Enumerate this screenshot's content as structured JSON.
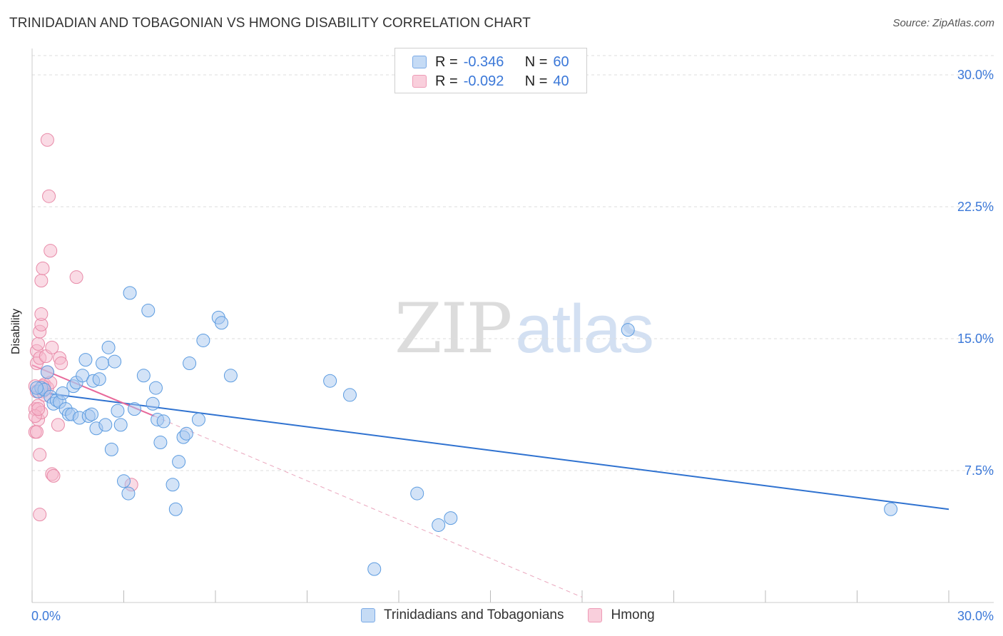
{
  "title": "TRINIDADIAN AND TOBAGONIAN VS HMONG DISABILITY CORRELATION CHART",
  "source": "Source: ZipAtlas.com",
  "watermark": {
    "zip": "ZIP",
    "atlas": "atlas"
  },
  "legend": {
    "rows": [
      {
        "r_label": "R =",
        "r_value": "-0.346",
        "n_label": "N =",
        "n_value": "60",
        "color": "#a8c8f0"
      },
      {
        "r_label": "R =",
        "r_value": "-0.092",
        "n_label": "N =",
        "n_value": "40",
        "color": "#f6b8cb"
      }
    ]
  },
  "bottom_legend": {
    "items": [
      {
        "label": "Trinidadians and Tobagonians",
        "color": "#a8c8f0"
      },
      {
        "label": "Hmong",
        "color": "#f6b8cb"
      }
    ]
  },
  "chart_data": {
    "type": "scatter",
    "title": "TRINIDADIAN AND TOBAGONIAN VS HMONG DISABILITY CORRELATION CHART",
    "xlabel": "",
    "ylabel": "Disability",
    "xlim": [
      0,
      30
    ],
    "ylim": [
      0,
      31.5
    ],
    "x_tick_labels": [
      "0.0%",
      "30.0%"
    ],
    "y_ticks": [
      7.5,
      15.0,
      22.5,
      30.0
    ],
    "y_tick_labels": [
      "7.5%",
      "15.0%",
      "22.5%",
      "30.0%"
    ],
    "grid": true,
    "series": [
      {
        "name": "Trinidadians and Tobagonians",
        "color": "#a8c8f0",
        "stroke": "#5b9be0",
        "points": [
          [
            0.2,
            12.0
          ],
          [
            0.3,
            12.2
          ],
          [
            0.4,
            12.1
          ],
          [
            0.5,
            13.1
          ],
          [
            0.6,
            11.7
          ],
          [
            0.7,
            11.3
          ],
          [
            0.8,
            11.5
          ],
          [
            0.9,
            11.4
          ],
          [
            1.0,
            11.9
          ],
          [
            1.1,
            11.0
          ],
          [
            1.2,
            10.7
          ],
          [
            1.3,
            10.7
          ],
          [
            1.35,
            12.3
          ],
          [
            1.45,
            12.5
          ],
          [
            1.55,
            10.5
          ],
          [
            1.65,
            12.9
          ],
          [
            1.75,
            13.8
          ],
          [
            1.85,
            10.6
          ],
          [
            1.95,
            10.7
          ],
          [
            2.0,
            12.6
          ],
          [
            2.1,
            9.9
          ],
          [
            2.2,
            12.7
          ],
          [
            2.3,
            13.6
          ],
          [
            2.4,
            10.1
          ],
          [
            2.5,
            14.5
          ],
          [
            2.6,
            8.7
          ],
          [
            2.7,
            13.7
          ],
          [
            2.8,
            10.9
          ],
          [
            2.9,
            10.1
          ],
          [
            3.0,
            6.9
          ],
          [
            3.15,
            6.2
          ],
          [
            3.2,
            17.6
          ],
          [
            3.35,
            11.0
          ],
          [
            3.65,
            12.9
          ],
          [
            3.8,
            16.6
          ],
          [
            3.95,
            11.3
          ],
          [
            4.05,
            12.2
          ],
          [
            4.1,
            10.4
          ],
          [
            4.2,
            9.1
          ],
          [
            4.3,
            10.3
          ],
          [
            4.6,
            6.7
          ],
          [
            4.7,
            5.3
          ],
          [
            4.8,
            8.0
          ],
          [
            4.95,
            9.4
          ],
          [
            5.05,
            9.6
          ],
          [
            5.15,
            13.6
          ],
          [
            5.45,
            10.4
          ],
          [
            5.6,
            14.9
          ],
          [
            6.1,
            16.2
          ],
          [
            6.2,
            15.9
          ],
          [
            6.5,
            12.9
          ],
          [
            9.75,
            12.6
          ],
          [
            10.4,
            11.8
          ],
          [
            11.2,
            1.9
          ],
          [
            12.6,
            6.2
          ],
          [
            13.3,
            4.4
          ],
          [
            13.7,
            4.8
          ],
          [
            19.5,
            15.5
          ],
          [
            28.1,
            5.3
          ],
          [
            0.15,
            12.2
          ]
        ]
      },
      {
        "name": "Hmong",
        "color": "#f6b8cb",
        "stroke": "#e88aa8",
        "points": [
          [
            0.1,
            12.3
          ],
          [
            0.1,
            11.0
          ],
          [
            0.1,
            9.7
          ],
          [
            0.15,
            14.3
          ],
          [
            0.15,
            13.6
          ],
          [
            0.15,
            12.0
          ],
          [
            0.2,
            14.7
          ],
          [
            0.2,
            10.4
          ],
          [
            0.2,
            11.2
          ],
          [
            0.25,
            13.9
          ],
          [
            0.25,
            15.4
          ],
          [
            0.25,
            8.4
          ],
          [
            0.25,
            5.0
          ],
          [
            0.3,
            15.8
          ],
          [
            0.3,
            16.4
          ],
          [
            0.3,
            18.3
          ],
          [
            0.3,
            10.8
          ],
          [
            0.35,
            19.0
          ],
          [
            0.35,
            12.0
          ],
          [
            0.4,
            12.4
          ],
          [
            0.4,
            11.8
          ],
          [
            0.45,
            14.0
          ],
          [
            0.5,
            26.3
          ],
          [
            0.5,
            13.1
          ],
          [
            0.5,
            12.2
          ],
          [
            0.55,
            23.1
          ],
          [
            0.6,
            20.0
          ],
          [
            0.6,
            12.5
          ],
          [
            0.65,
            14.5
          ],
          [
            0.65,
            7.3
          ],
          [
            0.7,
            7.2
          ],
          [
            0.85,
            10.1
          ],
          [
            0.9,
            13.9
          ],
          [
            0.95,
            13.6
          ],
          [
            1.45,
            18.5
          ],
          [
            3.25,
            6.7
          ],
          [
            0.1,
            10.6
          ],
          [
            0.15,
            9.7
          ],
          [
            0.35,
            12.3
          ],
          [
            0.2,
            11.0
          ]
        ]
      }
    ],
    "trend_lines": [
      {
        "series": "Trinidadians and Tobagonians",
        "x": [
          0,
          30
        ],
        "y": [
          12.0,
          5.3
        ],
        "style": "solid",
        "color": "#2f72d0"
      },
      {
        "series": "Hmong",
        "x": [
          0,
          4.0
        ],
        "y": [
          13.5,
          10.6
        ],
        "style": "solid",
        "color": "#e8699a"
      },
      {
        "series": "Hmong",
        "x": [
          4.0,
          18.0
        ],
        "y": [
          10.6,
          0.3
        ],
        "style": "dashed",
        "color": "#eaa6bd"
      }
    ]
  }
}
